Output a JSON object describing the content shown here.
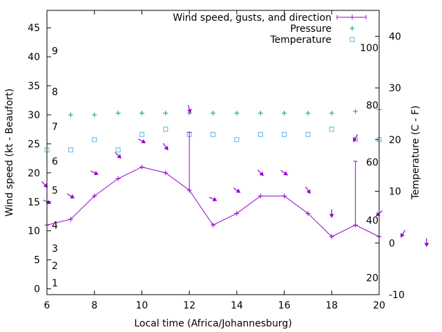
{
  "chart_data": {
    "type": "line",
    "x_axis": {
      "label": "Local time (Africa/Johannesburg)",
      "range": [
        6,
        20
      ],
      "ticks": [
        6,
        8,
        10,
        12,
        14,
        16,
        18,
        20
      ]
    },
    "y_axis_left": {
      "label": "Wind speed (kt - Beaufort)",
      "range": [
        -1,
        48
      ],
      "ticks": [
        0,
        5,
        10,
        15,
        20,
        25,
        30,
        35,
        40,
        45
      ]
    },
    "y_axis_right": {
      "label": "Temperature (C - F)",
      "range": [
        -10,
        45
      ],
      "ticks": [
        -10,
        0,
        10,
        20,
        30,
        40
      ]
    },
    "beaufort_labels": [
      {
        "label": "1",
        "speed": 1
      },
      {
        "label": "2",
        "speed": 4
      },
      {
        "label": "3",
        "speed": 7
      },
      {
        "label": "4",
        "speed": 11
      },
      {
        "label": "5",
        "speed": 17
      },
      {
        "label": "6",
        "speed": 22
      },
      {
        "label": "7",
        "speed": 28
      },
      {
        "label": "8",
        "speed": 34
      },
      {
        "label": "9",
        "speed": 41
      }
    ],
    "fahrenheit_labels": [
      {
        "label": "20",
        "temp_c": -6.7
      },
      {
        "label": "40",
        "temp_c": 4.4
      },
      {
        "label": "60",
        "temp_c": 15.6
      },
      {
        "label": "80",
        "temp_c": 26.7
      },
      {
        "label": "100",
        "temp_c": 37.8
      }
    ],
    "legend_position": "top-right",
    "grid": false,
    "series": [
      {
        "name": "Wind speed, gusts, and direction",
        "kind": "wind",
        "color": "#9400d3",
        "x": [
          6,
          7,
          8,
          9,
          10,
          11,
          12,
          13,
          14,
          15,
          16,
          17,
          18,
          19,
          20
        ],
        "speed": [
          11,
          12,
          16,
          19,
          21,
          20,
          17,
          11,
          13,
          16,
          16,
          13,
          9,
          11,
          9
        ],
        "gust": [
          null,
          null,
          null,
          null,
          null,
          null,
          27,
          null,
          null,
          null,
          null,
          null,
          null,
          22,
          null
        ],
        "arrows": [
          {
            "x": 5.9,
            "speed": 18,
            "dir_deg": 135
          },
          {
            "x": 6,
            "speed": 15,
            "dir_deg": 115
          },
          {
            "x": 7,
            "speed": 16,
            "dir_deg": 120
          },
          {
            "x": 8,
            "speed": 20,
            "dir_deg": 115
          },
          {
            "x": 9,
            "speed": 23,
            "dir_deg": 135
          },
          {
            "x": 10,
            "speed": 25.5,
            "dir_deg": 120
          },
          {
            "x": 11,
            "speed": 24.5,
            "dir_deg": 145
          },
          {
            "x": 12,
            "speed": 31,
            "dir_deg": 165
          },
          {
            "x": 13,
            "speed": 15.5,
            "dir_deg": 115
          },
          {
            "x": 14,
            "speed": 17,
            "dir_deg": 125
          },
          {
            "x": 15,
            "speed": 20,
            "dir_deg": 135
          },
          {
            "x": 16,
            "speed": 20,
            "dir_deg": 125
          },
          {
            "x": 17,
            "speed": 17,
            "dir_deg": 145
          },
          {
            "x": 18,
            "speed": 13,
            "dir_deg": 180
          },
          {
            "x": 19,
            "speed": 26,
            "dir_deg": 210
          },
          {
            "x": 20,
            "speed": 13,
            "dir_deg": 230
          },
          {
            "x": 21,
            "speed": 9.5,
            "dir_deg": 210
          },
          {
            "x": 22,
            "speed": 8,
            "dir_deg": 180
          }
        ]
      },
      {
        "name": "Pressure",
        "kind": "pressure",
        "color": "#009e73",
        "x": [
          7,
          8,
          9,
          10,
          11,
          12,
          13,
          14,
          15,
          16,
          17,
          18,
          19,
          20
        ],
        "y_left": [
          30,
          30,
          30.3,
          30.3,
          30.3,
          30.3,
          30.3,
          30.3,
          30.3,
          30.3,
          30.3,
          30.3,
          30.6,
          30.9
        ]
      },
      {
        "name": "Temperature",
        "kind": "temperature",
        "color": "#56b4e9",
        "x": [
          6,
          7,
          8,
          9,
          10,
          11,
          12,
          13,
          14,
          15,
          16,
          17,
          18,
          19,
          20
        ],
        "temp_c": [
          18,
          18,
          20,
          18,
          21,
          22,
          21,
          21,
          20,
          21,
          21,
          21,
          22,
          20,
          20
        ]
      }
    ]
  }
}
